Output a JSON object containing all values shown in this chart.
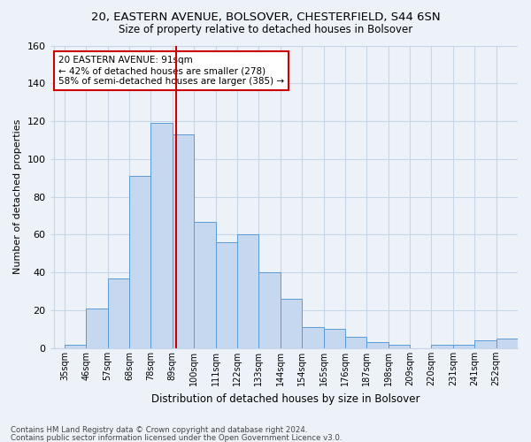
{
  "title1": "20, EASTERN AVENUE, BOLSOVER, CHESTERFIELD, S44 6SN",
  "title2": "Size of property relative to detached houses in Bolsover",
  "xlabel": "Distribution of detached houses by size in Bolsover",
  "ylabel": "Number of detached properties",
  "bar_heights": [
    2,
    21,
    37,
    91,
    119,
    113,
    67,
    56,
    60,
    40,
    26,
    11,
    10,
    6,
    3,
    2,
    0,
    2,
    2,
    4,
    5
  ],
  "tick_labels": [
    "35sqm",
    "46sqm",
    "57sqm",
    "68sqm",
    "78sqm",
    "89sqm",
    "100sqm",
    "111sqm",
    "122sqm",
    "133sqm",
    "144sqm",
    "154sqm",
    "165sqm",
    "176sqm",
    "187sqm",
    "198sqm",
    "209sqm",
    "220sqm",
    "231sqm",
    "241sqm",
    "252sqm"
  ],
  "bar_color": "#c5d8f0",
  "bar_edge_color": "#5b9bd5",
  "grid_color": "#c8d4e8",
  "vline_pos": 5.18,
  "vline_color": "#cc0000",
  "annotation_text": "20 EASTERN AVENUE: 91sqm\n← 42% of detached houses are smaller (278)\n58% of semi-detached houses are larger (385) →",
  "annotation_box_color": "#ffffff",
  "annotation_box_edge": "#cc0000",
  "ylim": [
    0,
    160
  ],
  "yticks": [
    0,
    20,
    40,
    60,
    80,
    100,
    120,
    140,
    160
  ],
  "footer1": "Contains HM Land Registry data © Crown copyright and database right 2024.",
  "footer2": "Contains public sector information licensed under the Open Government Licence v3.0.",
  "bg_color": "#edf2f9"
}
